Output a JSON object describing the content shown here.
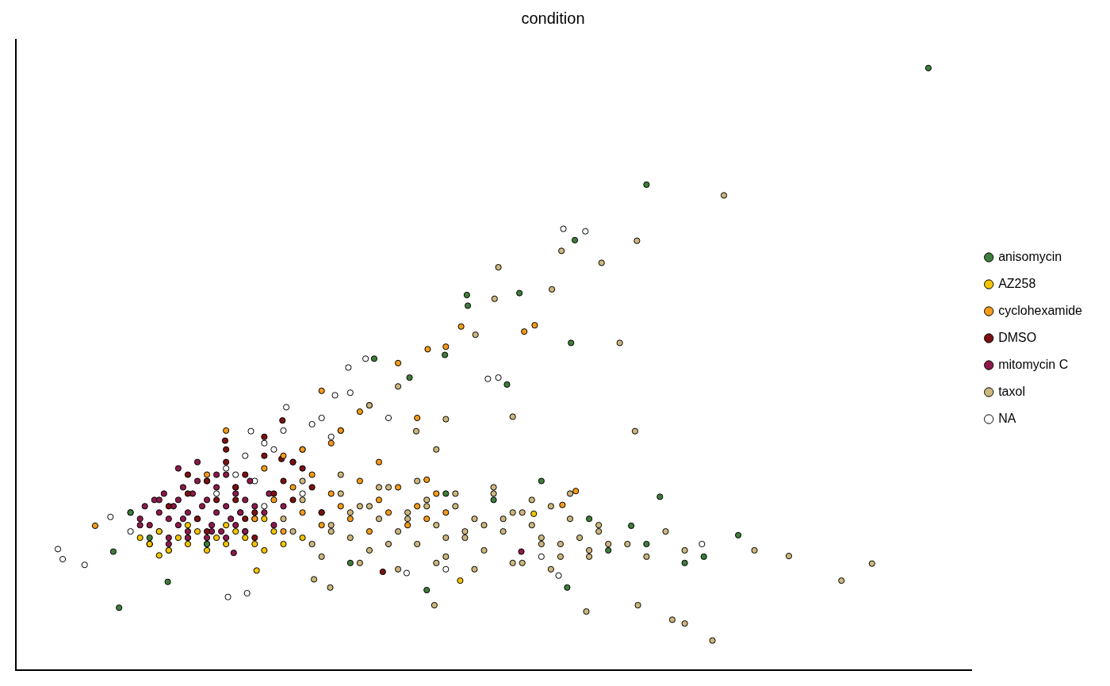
{
  "chart_data": {
    "type": "scatter",
    "title": "condition",
    "xlim": [
      0,
      100
    ],
    "ylim": [
      0,
      100
    ],
    "tick_labels": false,
    "grid": false,
    "legend": "right",
    "marker": "circle",
    "series": [
      {
        "name": "anisomycin",
        "color": "#3f7d3b",
        "x": [
          95.5,
          66,
          58.5,
          47.2,
          47.3,
          52.7,
          58.1,
          51.4,
          10.8,
          15.9,
          10.2,
          67.4,
          75.6,
          64.4,
          57.7,
          43,
          37.5,
          41.2,
          44.9,
          12,
          14,
          20,
          35,
          45,
          50,
          55,
          60,
          62,
          66,
          70,
          72
        ],
        "values": [
          95.5,
          77,
          68.2,
          59.5,
          57.8,
          59.8,
          51.9,
          45.3,
          9.9,
          14,
          18.8,
          27.5,
          21.4,
          22.9,
          13.1,
          12.7,
          49.4,
          46.4,
          50,
          25,
          21,
          20,
          17,
          28,
          27,
          30,
          24,
          19,
          20,
          17,
          18
        ]
      },
      {
        "name": "AZ258",
        "color": "#f2c500",
        "x": [
          13,
          14,
          15,
          16,
          17,
          18,
          19,
          20,
          21,
          22,
          23,
          24,
          25,
          26,
          27,
          28,
          15,
          25.2,
          46.5,
          54.2,
          18,
          22,
          26,
          30
        ],
        "values": [
          21,
          20,
          22,
          19,
          21,
          20,
          22,
          19,
          21,
          20,
          22,
          21,
          20,
          19,
          22,
          20,
          18.2,
          15.8,
          14.2,
          24.8,
          23,
          23,
          24,
          21
        ]
      },
      {
        "name": "cyclohexamide",
        "color": "#f39a1b",
        "x": [
          25,
          27,
          28,
          29,
          30,
          31,
          32,
          33,
          34,
          35,
          36,
          37,
          38,
          39,
          40,
          41,
          42,
          43,
          44,
          45,
          30,
          34,
          38,
          42,
          54.3,
          53.2,
          46.6,
          45,
          43.1,
          40,
          32,
          8.3,
          43,
          57.2,
          58.6,
          26,
          28,
          33,
          36,
          20,
          22
        ],
        "values": [
          24,
          27,
          22,
          29,
          25,
          31,
          23,
          28,
          26,
          24,
          30,
          22,
          27,
          25,
          29,
          23,
          26,
          24,
          28,
          25,
          35,
          38,
          33,
          40,
          54.7,
          53.7,
          54.5,
          51.3,
          50.9,
          48.7,
          44.3,
          22.9,
          30.2,
          26.2,
          28.4,
          32,
          34,
          36,
          41,
          31,
          38
        ]
      },
      {
        "name": "DMSO",
        "color": "#7b1113",
        "x": [
          16,
          18,
          19,
          20,
          21,
          22,
          23,
          24,
          25,
          26,
          27,
          28,
          29,
          30,
          31,
          21.9,
          27.8,
          27.9,
          38.4,
          20,
          22,
          24,
          26,
          18,
          23,
          25,
          29,
          32
        ],
        "values": [
          26,
          28,
          24,
          30,
          27,
          33,
          29,
          31,
          25,
          34,
          28,
          30,
          27,
          32,
          29,
          36.4,
          33.5,
          39.6,
          15.6,
          22,
          35,
          24,
          37,
          31,
          27,
          21,
          33,
          25
        ]
      },
      {
        "name": "mitomycin C",
        "color": "#8b1a4b",
        "x": [
          12,
          13,
          13.5,
          14,
          14.5,
          15,
          15,
          15.5,
          16,
          16,
          16.5,
          17,
          17,
          17.5,
          18,
          18,
          18.5,
          19,
          19,
          19.5,
          20,
          20,
          20.5,
          21,
          21,
          21.5,
          22,
          22,
          22.5,
          23,
          23,
          23.5,
          24,
          24,
          24.5,
          25,
          25,
          26,
          26.5,
          27,
          28,
          14,
          16,
          18,
          20,
          22,
          24,
          17,
          19,
          21,
          23,
          52.9,
          22.8,
          13,
          15,
          17.5,
          20.5,
          23.5
        ],
        "values": [
          25,
          24,
          26,
          23,
          27,
          22,
          25,
          28,
          24,
          21,
          26,
          23,
          27,
          29,
          22,
          25,
          28,
          24,
          30,
          26,
          21,
          27,
          23,
          25,
          29,
          22,
          26,
          31,
          24,
          23,
          28,
          25,
          22,
          27,
          30,
          24,
          26,
          25,
          28,
          23,
          26,
          20,
          20,
          21,
          20,
          21,
          22,
          32,
          33,
          31,
          29,
          18.8,
          18.6,
          23,
          27,
          24,
          22,
          25
        ]
      },
      {
        "name": "taxol",
        "color": "#cdb67e",
        "x": [
          28,
          29,
          30,
          31,
          32,
          33,
          34,
          35,
          36,
          37,
          38,
          39,
          40,
          41,
          42,
          43,
          44,
          45,
          46,
          47,
          48,
          49,
          50,
          51,
          52,
          53,
          54,
          55,
          56,
          57,
          58,
          59,
          60,
          61,
          62,
          30,
          32,
          34,
          36,
          38,
          40,
          42,
          44,
          46,
          48,
          50,
          52,
          54,
          56,
          58,
          60,
          33,
          37,
          41,
          45,
          49,
          53,
          57,
          61,
          64,
          66,
          68,
          70,
          35,
          39,
          43,
          47,
          51,
          55,
          74.1,
          65,
          57.1,
          61.3,
          50.5,
          56.1,
          50.1,
          48.1,
          64.8,
          52,
          63.2,
          86.4,
          89.6,
          72.9,
          80.9,
          77.3,
          65.1,
          68.7,
          70,
          59.7,
          43.8,
          41.9,
          45,
          32.9,
          31.2,
          37,
          40,
          44
        ],
        "values": [
          24,
          22,
          27,
          20,
          25,
          23,
          28,
          21,
          26,
          19,
          24,
          29,
          22,
          25,
          20,
          27,
          23,
          18,
          26,
          21,
          24,
          19,
          28,
          22,
          25,
          17,
          23,
          20,
          26,
          18,
          24,
          21,
          19,
          23,
          20,
          30,
          18,
          31,
          17,
          29,
          16,
          30,
          17,
          28,
          16,
          29,
          17,
          27,
          16,
          28,
          18,
          22,
          26,
          24,
          21,
          23,
          25,
          20,
          22,
          20,
          18,
          22,
          19,
          25,
          20,
          26,
          22,
          24,
          21,
          75.3,
          68.1,
          66.5,
          64.6,
          63.9,
          60.4,
          58.9,
          53.2,
          37.9,
          40.2,
          51.9,
          14.2,
          16.9,
          4.7,
          18.1,
          19,
          10.3,
          8,
          7.4,
          9.3,
          10.3,
          37.9,
          39.8,
          13.1,
          14.4,
          42,
          45,
          35
        ]
      },
      {
        "name": "NA",
        "color": "#ffffff",
        "x": [
          57.3,
          59.6,
          34.8,
          36.6,
          33.4,
          28.3,
          24.6,
          22.2,
          24.2,
          7.2,
          4.9,
          4.4,
          9.9,
          40.9,
          71.8,
          56.8,
          49.4,
          50.5,
          20,
          22,
          24,
          26,
          28,
          30,
          32,
          34,
          21,
          25,
          29,
          33,
          37,
          23,
          27,
          31,
          35,
          39,
          26,
          30,
          12,
          14,
          16,
          18,
          45,
          55
        ],
        "values": [
          70,
          69.6,
          48,
          49.4,
          43.6,
          41.7,
          37.9,
          11.6,
          12.2,
          16.7,
          17.6,
          19.2,
          24.3,
          15.4,
          20,
          15,
          46.2,
          46.4,
          30,
          32,
          34,
          36,
          38,
          35,
          40,
          38,
          28,
          30,
          33,
          37,
          42,
          31,
          35,
          39,
          44,
          40,
          26,
          28,
          22,
          20,
          19,
          21,
          16,
          18
        ]
      }
    ]
  }
}
